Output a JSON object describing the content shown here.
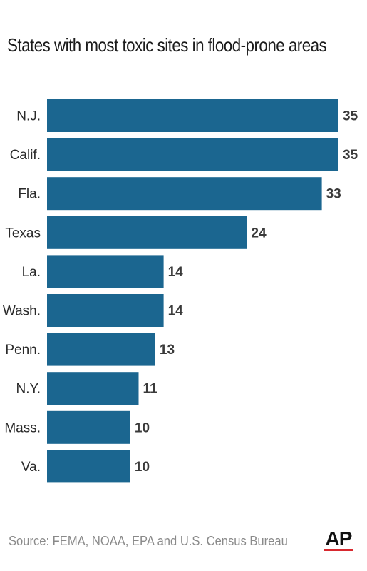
{
  "title": "States with most toxic sites in flood-prone areas",
  "source": "Source: FEMA, NOAA, EPA and U.S. Census Bureau",
  "logo": "AP",
  "colors": {
    "bar": "#1b6690",
    "logo_bar": "#d8292f"
  },
  "chart_data": {
    "type": "bar",
    "orientation": "horizontal",
    "categories": [
      "N.J.",
      "Calif.",
      "Fla.",
      "Texas",
      "La.",
      "Wash.",
      "Penn.",
      "N.Y.",
      "Mass.",
      "Va."
    ],
    "values": [
      35,
      35,
      33,
      24,
      14,
      14,
      13,
      11,
      10,
      10
    ],
    "title": "States with most toxic sites in flood-prone areas",
    "xlabel": "",
    "ylabel": "",
    "xlim": [
      0,
      35
    ],
    "grid": false,
    "data_labels": true
  }
}
